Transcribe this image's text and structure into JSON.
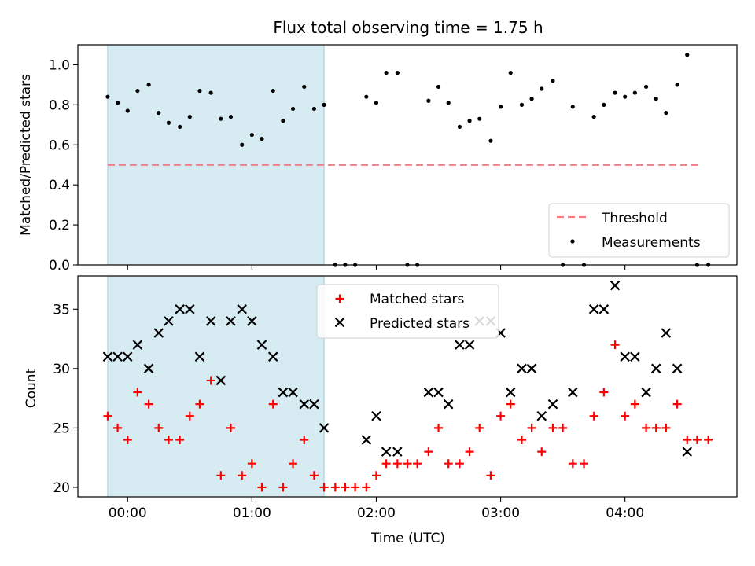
{
  "chart_data": [
    {
      "type": "scatter",
      "title": "Flux total observing time = 1.75 h",
      "xlabel": "",
      "ylabel": "Matched/Predicted stars",
      "xlim": [
        -0.4,
        4.9
      ],
      "ylim": [
        0.0,
        1.1
      ],
      "yticks": [
        0.0,
        0.2,
        0.4,
        0.6,
        0.8,
        1.0
      ],
      "ytick_labels": [
        "0.0",
        "0.2",
        "0.4",
        "0.6",
        "0.8",
        "1.0"
      ],
      "xticks": [
        0,
        1,
        2,
        3,
        4
      ],
      "shaded_span": [
        -0.16,
        1.58
      ],
      "legend_position": "lower-right",
      "threshold": {
        "name": "Threshold",
        "value": 0.5,
        "x_range": [
          -0.16,
          4.62
        ],
        "color": "#f08080"
      },
      "series": [
        {
          "name": "Measurements",
          "color": "#000000",
          "x": [
            -0.16,
            -0.08,
            0.0,
            0.08,
            0.17,
            0.25,
            0.33,
            0.42,
            0.5,
            0.58,
            0.67,
            0.75,
            0.83,
            0.92,
            1.0,
            1.08,
            1.17,
            1.25,
            1.33,
            1.42,
            1.5,
            1.58,
            1.67,
            1.75,
            1.83,
            1.92,
            2.0,
            2.08,
            2.17,
            2.25,
            2.33,
            2.42,
            2.5,
            2.58,
            2.67,
            2.75,
            2.83,
            2.92,
            3.0,
            3.08,
            3.17,
            3.25,
            3.33,
            3.42,
            3.5,
            3.58,
            3.67,
            3.75,
            3.83,
            3.92,
            4.0,
            4.08,
            4.17,
            4.25,
            4.33,
            4.42,
            4.5,
            4.58,
            4.67
          ],
          "y": [
            0.84,
            0.81,
            0.77,
            0.87,
            0.9,
            0.76,
            0.71,
            0.69,
            0.74,
            0.87,
            0.86,
            0.73,
            0.74,
            0.6,
            0.65,
            0.63,
            0.87,
            0.72,
            0.78,
            0.89,
            0.78,
            0.8,
            0.0,
            0.0,
            0.0,
            0.84,
            0.81,
            0.96,
            0.96,
            0.0,
            0.0,
            0.82,
            0.89,
            0.81,
            0.69,
            0.72,
            0.73,
            0.62,
            0.79,
            0.96,
            0.8,
            0.83,
            0.88,
            0.92,
            0.0,
            0.79,
            0.0,
            0.74,
            0.8,
            0.86,
            0.84,
            0.86,
            0.89,
            0.83,
            0.76,
            0.9,
            1.05,
            0.0,
            0.0
          ]
        }
      ]
    },
    {
      "type": "scatter",
      "title": "",
      "xlabel": "Time (UTC)",
      "ylabel": "Count",
      "xlim": [
        -0.4,
        4.9
      ],
      "ylim": [
        19.2,
        37.8
      ],
      "yticks": [
        20,
        25,
        30,
        35
      ],
      "ytick_labels": [
        "20",
        "25",
        "30",
        "35"
      ],
      "xticks": [
        0,
        1,
        2,
        3,
        4
      ],
      "xtick_labels": [
        "00:00",
        "01:00",
        "02:00",
        "03:00",
        "04:00"
      ],
      "shaded_span": [
        -0.16,
        1.58
      ],
      "legend_position": "upper-center",
      "series": [
        {
          "name": "Matched stars",
          "color": "#ff0000",
          "marker": "+",
          "x": [
            -0.16,
            -0.08,
            0.0,
            0.08,
            0.17,
            0.25,
            0.33,
            0.42,
            0.5,
            0.58,
            0.67,
            0.75,
            0.83,
            0.92,
            1.0,
            1.08,
            1.17,
            1.25,
            1.33,
            1.42,
            1.5,
            1.58,
            1.67,
            1.75,
            1.83,
            1.92,
            2.0,
            2.08,
            2.17,
            2.25,
            2.33,
            2.42,
            2.5,
            2.58,
            2.67,
            2.75,
            2.83,
            2.92,
            3.0,
            3.08,
            3.17,
            3.25,
            3.33,
            3.42,
            3.5,
            3.58,
            3.67,
            3.75,
            3.83,
            3.92,
            4.0,
            4.08,
            4.17,
            4.25,
            4.33,
            4.42,
            4.5,
            4.58,
            4.67
          ],
          "y": [
            26,
            25,
            24,
            28,
            27,
            25,
            24,
            24,
            26,
            27,
            29,
            21,
            25,
            21,
            22,
            20,
            27,
            20,
            22,
            24,
            21,
            20,
            20,
            20,
            20,
            20,
            21,
            22,
            22,
            22,
            22,
            23,
            25,
            22,
            22,
            23,
            25,
            21,
            26,
            27,
            24,
            25,
            23,
            25,
            25,
            22,
            22,
            26,
            28,
            32,
            26,
            27,
            25,
            25,
            25,
            27,
            24,
            24,
            24
          ]
        },
        {
          "name": "Predicted stars",
          "color": "#000000",
          "marker": "x",
          "x": [
            -0.16,
            -0.08,
            0.0,
            0.08,
            0.17,
            0.25,
            0.33,
            0.42,
            0.5,
            0.58,
            0.67,
            0.75,
            0.83,
            0.92,
            1.0,
            1.08,
            1.17,
            1.25,
            1.33,
            1.42,
            1.5,
            1.58,
            1.92,
            2.0,
            2.08,
            2.17,
            2.42,
            2.5,
            2.58,
            2.67,
            2.75,
            2.83,
            2.92,
            3.0,
            3.08,
            3.17,
            3.25,
            3.33,
            3.42,
            3.58,
            3.75,
            3.83,
            3.92,
            4.0,
            4.08,
            4.17,
            4.25,
            4.33,
            4.42,
            4.5
          ],
          "y": [
            31,
            31,
            31,
            32,
            30,
            33,
            34,
            35,
            35,
            31,
            34,
            29,
            34,
            35,
            34,
            32,
            31,
            28,
            28,
            27,
            27,
            25,
            24,
            26,
            23,
            23,
            28,
            28,
            27,
            32,
            32,
            34,
            34,
            33,
            28,
            30,
            30,
            26,
            27,
            28,
            35,
            35,
            37,
            31,
            31,
            28,
            30,
            33,
            30,
            23
          ]
        }
      ]
    }
  ]
}
